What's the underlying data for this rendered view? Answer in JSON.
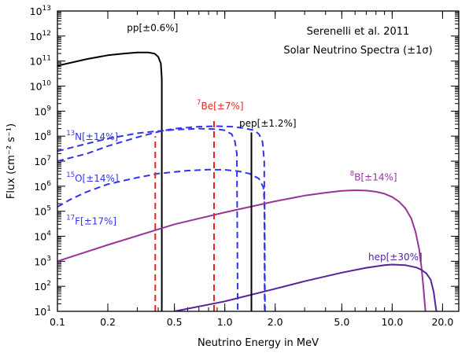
{
  "chart_data": {
    "type": "line",
    "title": "",
    "annotation_lines": [
      "Serenelli et al. 2011",
      "Solar Neutrino Spectra (±1σ)"
    ],
    "xlabel": "Neutrino Energy in MeV",
    "ylabel": "Flux (cm⁻² s⁻¹)",
    "x_scale": "log",
    "y_scale": "log",
    "xlim": [
      0.1,
      25
    ],
    "ylim": [
      10,
      10000000000000.0
    ],
    "x_ticks": [
      {
        "v": 0.1,
        "label": "0.1"
      },
      {
        "v": 0.2,
        "label": "0.2"
      },
      {
        "v": 0.5,
        "label": "0.5"
      },
      {
        "v": 1.0,
        "label": "1.0"
      },
      {
        "v": 2.0,
        "label": "2.0"
      },
      {
        "v": 5.0,
        "label": "5.0"
      },
      {
        "v": 10.0,
        "label": "10.0"
      },
      {
        "v": 20.0,
        "label": "20.0"
      }
    ],
    "y_ticks": [
      {
        "exp": 1,
        "label": "10",
        "sup": "1"
      },
      {
        "exp": 2,
        "label": "10",
        "sup": "2"
      },
      {
        "exp": 3,
        "label": "10",
        "sup": "3"
      },
      {
        "exp": 4,
        "label": "10",
        "sup": "4"
      },
      {
        "exp": 5,
        "label": "10",
        "sup": "5"
      },
      {
        "exp": 6,
        "label": "10",
        "sup": "6"
      },
      {
        "exp": 7,
        "label": "10",
        "sup": "7"
      },
      {
        "exp": 8,
        "label": "10",
        "sup": "8"
      },
      {
        "exp": 9,
        "label": "10",
        "sup": "9"
      },
      {
        "exp": 10,
        "label": "10",
        "sup": "10"
      },
      {
        "exp": 11,
        "label": "10",
        "sup": "11"
      },
      {
        "exp": 12,
        "label": "10",
        "sup": "12"
      },
      {
        "exp": 13,
        "label": "10",
        "sup": "13"
      }
    ],
    "series": [
      {
        "id": "pp",
        "color": "#000000",
        "dash": "solid",
        "label": {
          "pre": "",
          "sup": "",
          "main": "pp[±0.6%]",
          "at": [
            0.26,
            1600000000000.0
          ]
        },
        "points": [
          [
            0.1,
            65000000000.0
          ],
          [
            0.15,
            120000000000.0
          ],
          [
            0.2,
            170000000000.0
          ],
          [
            0.25,
            200000000000.0
          ],
          [
            0.3,
            220000000000.0
          ],
          [
            0.35,
            220000000000.0
          ],
          [
            0.38,
            200000000000.0
          ],
          [
            0.4,
            150000000000.0
          ],
          [
            0.415,
            80000000000.0
          ],
          [
            0.42,
            20000000000.0
          ],
          [
            0.4202,
            10
          ]
        ]
      },
      {
        "id": "n13",
        "color": "#3333ee",
        "dash": "dashed",
        "label": {
          "pre": "",
          "sup": "13",
          "main": "N[±14%]",
          "at": [
            0.113,
            70000000.0
          ]
        },
        "points": [
          [
            0.1,
            25000000.0
          ],
          [
            0.15,
            50000000.0
          ],
          [
            0.2,
            80000000.0
          ],
          [
            0.3,
            130000000.0
          ],
          [
            0.4,
            160000000.0
          ],
          [
            0.5,
            180000000.0
          ],
          [
            0.7,
            200000000.0
          ],
          [
            0.9,
            190000000.0
          ],
          [
            1.0,
            170000000.0
          ],
          [
            1.1,
            120000000.0
          ],
          [
            1.15,
            60000000.0
          ],
          [
            1.18,
            20000000.0
          ],
          [
            1.195,
            10
          ]
        ]
      },
      {
        "id": "o15",
        "color": "#3333ee",
        "dash": "dashed",
        "label": {
          "pre": "",
          "sup": "15",
          "main": "O[±14%]",
          "at": [
            0.113,
            1500000.0
          ]
        },
        "points": [
          [
            0.1,
            10000000.0
          ],
          [
            0.15,
            20000000.0
          ],
          [
            0.2,
            40000000.0
          ],
          [
            0.3,
            90000000.0
          ],
          [
            0.4,
            150000000.0
          ],
          [
            0.5,
            200000000.0
          ],
          [
            0.7,
            240000000.0
          ],
          [
            0.9,
            250000000.0
          ],
          [
            1.1,
            240000000.0
          ],
          [
            1.3,
            210000000.0
          ],
          [
            1.5,
            170000000.0
          ],
          [
            1.6,
            120000000.0
          ],
          [
            1.68,
            60000000.0
          ],
          [
            1.72,
            10000000.0
          ],
          [
            1.73,
            10
          ]
        ]
      },
      {
        "id": "f17",
        "color": "#3333ee",
        "dash": "dashed",
        "label": {
          "pre": "",
          "sup": "17",
          "main": "F[±17%]",
          "at": [
            0.113,
            30000.0
          ]
        },
        "points": [
          [
            0.1,
            150000.0
          ],
          [
            0.12,
            300000.0
          ],
          [
            0.15,
            600000.0
          ],
          [
            0.2,
            1200000.0
          ],
          [
            0.3,
            2200000.0
          ],
          [
            0.4,
            3200000.0
          ],
          [
            0.6,
            4200000.0
          ],
          [
            0.8,
            4600000.0
          ],
          [
            1.0,
            4500000.0
          ],
          [
            1.2,
            4000000.0
          ],
          [
            1.4,
            3200000.0
          ],
          [
            1.6,
            2000000.0
          ],
          [
            1.7,
            900000.0
          ],
          [
            1.73,
            200000.0
          ],
          [
            1.74,
            10
          ]
        ]
      },
      {
        "id": "b8",
        "color": "#993399",
        "dash": "solid",
        "label": {
          "pre": "",
          "sup": "8",
          "main": "B[±14%]",
          "at": [
            5.6,
            1700000.0
          ]
        },
        "points": [
          [
            0.1,
            1000.0
          ],
          [
            0.2,
            4500.0
          ],
          [
            0.5,
            30000.0
          ],
          [
            1.0,
            90000.0
          ],
          [
            2.0,
            250000.0
          ],
          [
            3.0,
            420000.0
          ],
          [
            4.0,
            550000.0
          ],
          [
            5.0,
            650000.0
          ],
          [
            6.0,
            690000.0
          ],
          [
            7.0,
            670000.0
          ],
          [
            8.0,
            600000.0
          ],
          [
            9.0,
            500000.0
          ],
          [
            10.0,
            370000.0
          ],
          [
            11.0,
            240000.0
          ],
          [
            12.0,
            130000.0
          ],
          [
            13.0,
            52000.0
          ],
          [
            13.8,
            15000.0
          ],
          [
            14.5,
            3000.0
          ],
          [
            15.0,
            500.0
          ],
          [
            15.5,
            50
          ],
          [
            15.8,
            10
          ]
        ]
      },
      {
        "id": "hep",
        "color": "#552299",
        "dash": "solid",
        "label": {
          "pre": "",
          "sup": "",
          "main": "hep[±30%]",
          "at": [
            7.2,
            1100.0
          ]
        },
        "points": [
          [
            0.5,
            10
          ],
          [
            1.0,
            25
          ],
          [
            2.0,
            80
          ],
          [
            3.0,
            160
          ],
          [
            5.0,
            350
          ],
          [
            7.0,
            550
          ],
          [
            9.0,
            700
          ],
          [
            10.0,
            740
          ],
          [
            12.0,
            700
          ],
          [
            14.0,
            560
          ],
          [
            15.0,
            450
          ],
          [
            16.0,
            330
          ],
          [
            17.0,
            180
          ],
          [
            17.7,
            60
          ],
          [
            18.2,
            15
          ],
          [
            18.4,
            10
          ]
        ]
      },
      {
        "id": "be7a",
        "color": "#ee2222",
        "dash": "dashed",
        "label": {
          "pre": "",
          "sup": "7",
          "main": "Be[±7%]",
          "at": [
            0.68,
            1200000000.0
          ]
        },
        "points": [
          [
            0.384,
            10
          ],
          [
            0.384,
            100000000.0
          ]
        ]
      },
      {
        "id": "be7b",
        "color": "#ee2222",
        "dash": "dashed",
        "points": [
          [
            0.862,
            10
          ],
          [
            0.862,
            450000000.0
          ]
        ]
      },
      {
        "id": "pep",
        "color": "#000000",
        "dash": "solid",
        "label": {
          "pre": "",
          "sup": "",
          "main": "pep[±1.2%]",
          "at": [
            1.22,
            240000000.0
          ]
        },
        "points": [
          [
            1.442,
            10
          ],
          [
            1.442,
            140000000.0
          ]
        ]
      }
    ]
  }
}
